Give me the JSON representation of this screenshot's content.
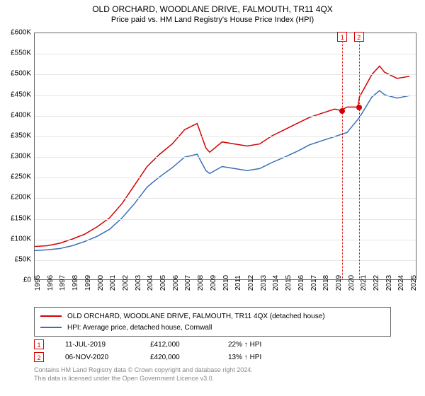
{
  "title": "OLD ORCHARD, WOODLANE DRIVE, FALMOUTH, TR11 4QX",
  "subtitle": "Price paid vs. HM Land Registry's House Price Index (HPI)",
  "chart": {
    "type": "line",
    "xlim": [
      1995,
      2025.5
    ],
    "ylim": [
      0,
      600000
    ],
    "ytick_step": 50000,
    "yticks": [
      "£0",
      "£50K",
      "£100K",
      "£150K",
      "£200K",
      "£250K",
      "£300K",
      "£350K",
      "£400K",
      "£450K",
      "£500K",
      "£550K",
      "£600K"
    ],
    "xticks": [
      1995,
      1996,
      1997,
      1998,
      1999,
      2000,
      2001,
      2002,
      2003,
      2004,
      2005,
      2006,
      2007,
      2008,
      2009,
      2010,
      2011,
      2012,
      2013,
      2014,
      2015,
      2016,
      2017,
      2018,
      2019,
      2020,
      2021,
      2022,
      2023,
      2024,
      2025
    ],
    "grid_color": "#e6e6e6",
    "background_color": "#ffffff",
    "border_color": "#666666",
    "series": [
      {
        "name": "property",
        "label": "OLD ORCHARD, WOODLANE DRIVE, FALMOUTH, TR11 4QX (detached house)",
        "color": "#d40000",
        "line_width": 1.5,
        "points": [
          [
            1995,
            80000
          ],
          [
            1996,
            82000
          ],
          [
            1997,
            88000
          ],
          [
            1998,
            98000
          ],
          [
            1999,
            110000
          ],
          [
            2000,
            128000
          ],
          [
            2001,
            150000
          ],
          [
            2002,
            185000
          ],
          [
            2003,
            230000
          ],
          [
            2004,
            275000
          ],
          [
            2005,
            305000
          ],
          [
            2006,
            330000
          ],
          [
            2007,
            365000
          ],
          [
            2008,
            380000
          ],
          [
            2008.7,
            320000
          ],
          [
            2009,
            310000
          ],
          [
            2010,
            335000
          ],
          [
            2011,
            330000
          ],
          [
            2012,
            325000
          ],
          [
            2013,
            330000
          ],
          [
            2014,
            350000
          ],
          [
            2015,
            365000
          ],
          [
            2016,
            380000
          ],
          [
            2017,
            395000
          ],
          [
            2018,
            405000
          ],
          [
            2019,
            415000
          ],
          [
            2019.5,
            412000
          ],
          [
            2020,
            420000
          ],
          [
            2020.85,
            420000
          ],
          [
            2021,
            445000
          ],
          [
            2022,
            500000
          ],
          [
            2022.6,
            520000
          ],
          [
            2023,
            505000
          ],
          [
            2024,
            490000
          ],
          [
            2025,
            495000
          ]
        ]
      },
      {
        "name": "hpi",
        "label": "HPI: Average price, detached house, Cornwall",
        "color": "#3a6fb7",
        "line_width": 1.5,
        "points": [
          [
            1995,
            70000
          ],
          [
            1996,
            72000
          ],
          [
            1997,
            75000
          ],
          [
            1998,
            82000
          ],
          [
            1999,
            92000
          ],
          [
            2000,
            105000
          ],
          [
            2001,
            122000
          ],
          [
            2002,
            150000
          ],
          [
            2003,
            185000
          ],
          [
            2004,
            225000
          ],
          [
            2005,
            250000
          ],
          [
            2006,
            272000
          ],
          [
            2007,
            298000
          ],
          [
            2008,
            305000
          ],
          [
            2008.7,
            265000
          ],
          [
            2009,
            258000
          ],
          [
            2010,
            275000
          ],
          [
            2011,
            270000
          ],
          [
            2012,
            265000
          ],
          [
            2013,
            270000
          ],
          [
            2014,
            285000
          ],
          [
            2015,
            298000
          ],
          [
            2016,
            312000
          ],
          [
            2017,
            328000
          ],
          [
            2018,
            338000
          ],
          [
            2019,
            348000
          ],
          [
            2020,
            358000
          ],
          [
            2021,
            395000
          ],
          [
            2022,
            445000
          ],
          [
            2022.6,
            460000
          ],
          [
            2023,
            450000
          ],
          [
            2024,
            442000
          ],
          [
            2025,
            448000
          ]
        ]
      }
    ],
    "markers": [
      {
        "id": "1",
        "x": 2019.53,
        "color": "#d40000",
        "dot_y": 412000
      },
      {
        "id": "2",
        "x": 2020.85,
        "color": "#d40000",
        "dot_y": 420000
      }
    ]
  },
  "legend": {
    "items": [
      {
        "color": "#d40000",
        "label": "OLD ORCHARD, WOODLANE DRIVE, FALMOUTH, TR11 4QX (detached house)"
      },
      {
        "color": "#3a6fb7",
        "label": "HPI: Average price, detached house, Cornwall"
      }
    ]
  },
  "annotations": [
    {
      "id": "1",
      "color": "#d40000",
      "date": "11-JUL-2019",
      "price": "£412,000",
      "delta": "22% ↑ HPI"
    },
    {
      "id": "2",
      "color": "#d40000",
      "date": "06-NOV-2020",
      "price": "£420,000",
      "delta": "13% ↑ HPI"
    }
  ],
  "footnote_line1": "Contains HM Land Registry data © Crown copyright and database right 2024.",
  "footnote_line2": "This data is licensed under the Open Government Licence v3.0."
}
